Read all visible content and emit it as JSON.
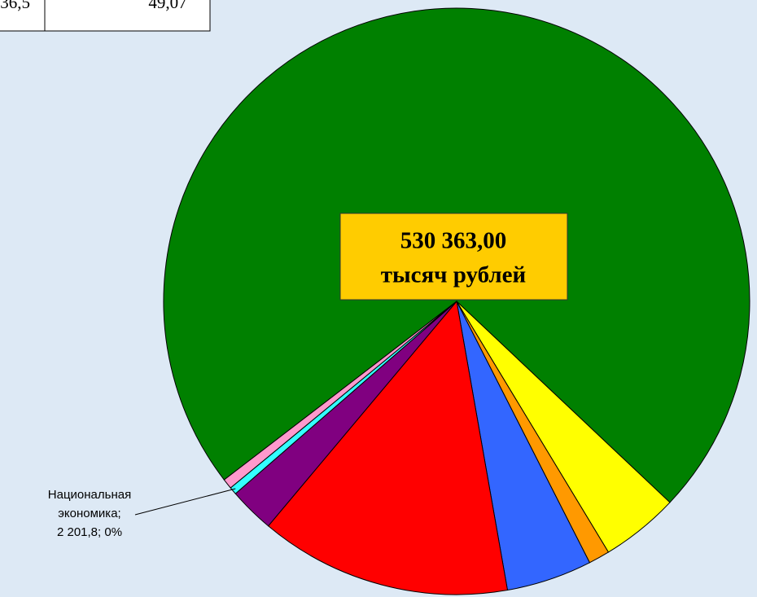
{
  "table": {
    "rows": [
      [
        "36,5",
        "49,07"
      ]
    ]
  },
  "chart_data": {
    "type": "pie",
    "center_label": [
      "530 363,00",
      "тысяч рублей"
    ],
    "values": [
      384231.2,
      22830,
      6190,
      25040,
      73660,
      13260,
      2201.8,
      2950
    ],
    "colors": [
      "#008000",
      "#ffff00",
      "#ff9900",
      "#3366ff",
      "#ff0000",
      "#800080",
      "#33ffff",
      "#ff99cc"
    ],
    "data_labels": [
      null,
      null,
      null,
      null,
      null,
      null,
      [
        "Национальная",
        "экономика;",
        "2 201,8; 0%"
      ],
      null
    ],
    "start_angle": 142.5
  }
}
